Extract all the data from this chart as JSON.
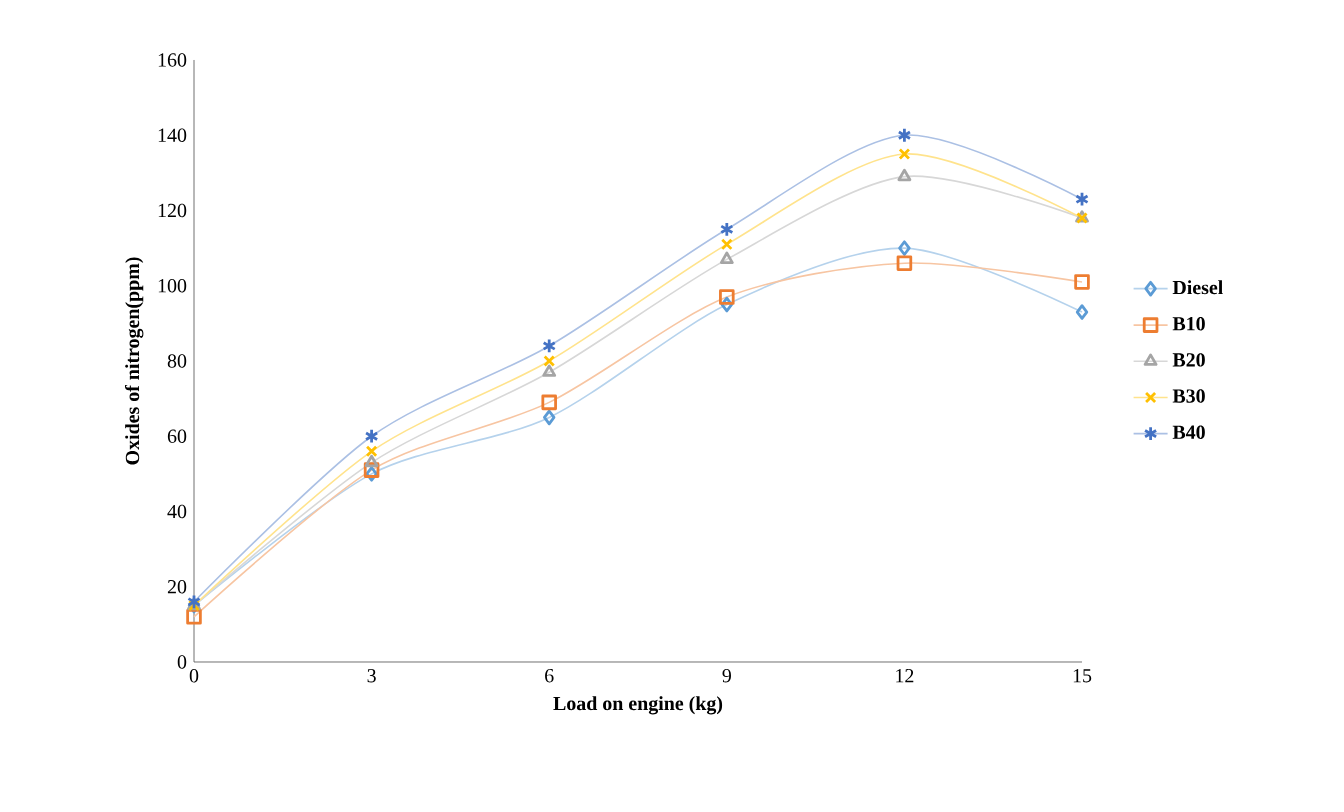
{
  "chart_data": {
    "type": "line",
    "xlabel": "Load on engine (kg)",
    "ylabel": "Oxides of nitrogen(ppm)",
    "x": [
      0,
      3,
      6,
      9,
      12,
      15
    ],
    "xlim": [
      0,
      15
    ],
    "xticks": [
      0,
      3,
      6,
      9,
      12,
      15
    ],
    "ylim": [
      0,
      160
    ],
    "yticks": [
      0,
      20,
      40,
      60,
      80,
      100,
      120,
      140,
      160
    ],
    "grid": false,
    "legend": "right",
    "series": [
      {
        "name": "Diesel",
        "color": "#5b9bd5",
        "marker": "diamond",
        "values": [
          15,
          50,
          65,
          95,
          110,
          93
        ]
      },
      {
        "name": "B10",
        "color": "#ed7d31",
        "marker": "square",
        "values": [
          12,
          51,
          69,
          97,
          106,
          101
        ]
      },
      {
        "name": "B20",
        "color": "#a5a5a5",
        "marker": "triangle",
        "values": [
          15,
          53,
          77,
          107,
          129,
          118
        ]
      },
      {
        "name": "B30",
        "color": "#ffc000",
        "marker": "cross",
        "values": [
          15,
          56,
          80,
          111,
          135,
          118
        ]
      },
      {
        "name": "B40",
        "color": "#4472c4",
        "marker": "cross",
        "values": [
          16,
          60,
          84,
          115,
          140,
          123
        ]
      }
    ]
  }
}
